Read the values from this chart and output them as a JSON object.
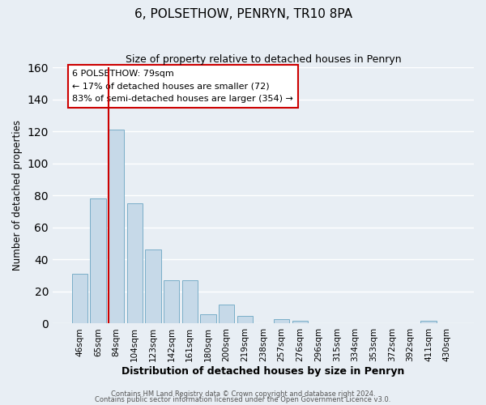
{
  "title": "6, POLSETHOW, PENRYN, TR10 8PA",
  "subtitle": "Size of property relative to detached houses in Penryn",
  "xlabel": "Distribution of detached houses by size in Penryn",
  "ylabel": "Number of detached properties",
  "bar_labels": [
    "46sqm",
    "65sqm",
    "84sqm",
    "104sqm",
    "123sqm",
    "142sqm",
    "161sqm",
    "180sqm",
    "200sqm",
    "219sqm",
    "238sqm",
    "257sqm",
    "276sqm",
    "296sqm",
    "315sqm",
    "334sqm",
    "353sqm",
    "372sqm",
    "392sqm",
    "411sqm",
    "430sqm"
  ],
  "bar_values": [
    31,
    78,
    121,
    75,
    46,
    27,
    27,
    6,
    12,
    5,
    0,
    3,
    2,
    0,
    0,
    0,
    0,
    0,
    0,
    2,
    0
  ],
  "bar_color": "#c6d9e8",
  "bar_edge_color": "#7aaec8",
  "vline_color": "#cc0000",
  "annotation_line1": "6 POLSETHOW: 79sqm",
  "annotation_line2": "← 17% of detached houses are smaller (72)",
  "annotation_line3": "83% of semi-detached houses are larger (354) →",
  "ylim": [
    0,
    160
  ],
  "footer1": "Contains HM Land Registry data © Crown copyright and database right 2024.",
  "footer2": "Contains public sector information licensed under the Open Government Licence v3.0.",
  "background_color": "#e8eef4",
  "plot_bg_color": "#e8eef4",
  "box_edge_color": "#cc0000",
  "grid_color": "#ffffff"
}
